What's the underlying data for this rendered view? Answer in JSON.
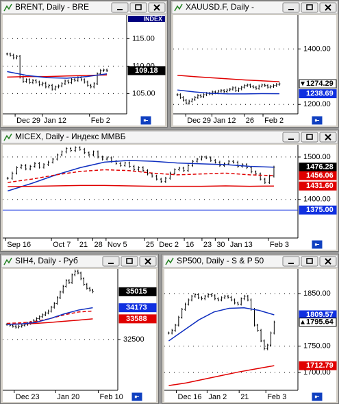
{
  "windows": [
    {
      "title": "BRENT, Daily - BRE",
      "tag": "INDEX",
      "ylim": [
        101.3,
        119.3
      ],
      "grid": true,
      "yticks": [
        {
          "value": 115,
          "label": "115.00"
        },
        {
          "value": 110,
          "label": "110.00"
        },
        {
          "value": 105,
          "label": "105.00"
        }
      ],
      "x_labels": [
        "Dec 29",
        "Jan 12",
        "Feb 2"
      ],
      "bars": [
        112.2,
        112,
        111.5,
        111.8,
        108,
        107.2,
        107.5,
        107,
        107.4,
        107.1,
        106.6,
        106.9,
        106.2,
        106.5,
        105.8,
        106.2,
        106.4,
        106.8,
        107.3,
        107,
        107.6,
        107.4,
        107.9,
        107.5,
        107.1,
        106.5,
        106.2,
        106.8,
        108.6,
        109.2,
        109.3,
        109.18
      ],
      "lines": [
        {
          "color": "#e00000",
          "values": [
            108,
            108.1,
            108.1,
            108.2,
            108.3,
            108.4
          ]
        },
        {
          "color": "#1030c0",
          "values": [
            109,
            108.3,
            107.9,
            107.8,
            108.1,
            108.6
          ]
        }
      ],
      "price_labels": [
        {
          "value": 109.18,
          "label": "109.18",
          "color": "#000000",
          "text_color": "#ffffff"
        }
      ]
    },
    {
      "title": "XAUUSD.F, Daily - ",
      "ylim": [
        1166,
        1522
      ],
      "grid": true,
      "yticks": [
        {
          "value": 1400,
          "label": "1400.00"
        },
        {
          "value": 1200,
          "label": "1200.00"
        }
      ],
      "x_labels": [
        "Dec 29",
        "Jan 12",
        "26",
        "Feb 2"
      ],
      "bars": [
        1235,
        1225,
        1215,
        1205,
        1212,
        1218,
        1225,
        1232,
        1228,
        1235,
        1240,
        1238,
        1245,
        1242,
        1248,
        1250,
        1246,
        1252,
        1255,
        1260,
        1250,
        1256,
        1262,
        1268,
        1270,
        1265,
        1262,
        1258,
        1266,
        1270,
        1268,
        1262,
        1265,
        1268,
        1272,
        1274.29
      ],
      "lines": [
        {
          "color": "#e00000",
          "values": [
            1305,
            1300,
            1296,
            1292,
            1288,
            1285,
            1282
          ]
        },
        {
          "color": "#1030c0",
          "values": [
            1252,
            1245,
            1240,
            1238,
            1238,
            1239,
            1238.69
          ]
        }
      ],
      "price_labels": [
        {
          "value": 1274.29,
          "label": "1274.29",
          "color": "#ffffff",
          "text_color": "#000000",
          "marker": "down"
        },
        {
          "value": 1238.69,
          "label": "1238.69",
          "color": "#1030e0",
          "text_color": "#ffffff"
        }
      ]
    },
    {
      "title": "MICEX, Daily - Индекс ММВБ",
      "ylim": [
        1309,
        1529
      ],
      "grid": true,
      "yticks": [
        {
          "value": 1500,
          "label": "1500.00"
        },
        {
          "value": 1400,
          "label": "1400.00"
        }
      ],
      "x_labels": [
        "Sep 16",
        "Oct 7",
        "21",
        "28",
        "Nov 5",
        "25",
        "Dec 2",
        "16",
        "23",
        "30",
        "Jan 13",
        "Feb 3"
      ],
      "bars": [
        1450,
        1462,
        1475,
        1480,
        1472,
        1478,
        1485,
        1476,
        1482,
        1488,
        1495,
        1505,
        1512,
        1520,
        1515,
        1522,
        1518,
        1510,
        1505,
        1512,
        1500,
        1495,
        1498,
        1490,
        1485,
        1480,
        1486,
        1478,
        1470,
        1475,
        1468,
        1460,
        1455,
        1448,
        1442,
        1450,
        1462,
        1470,
        1474,
        1468,
        1480,
        1490,
        1495,
        1500,
        1498,
        1492,
        1488,
        1480,
        1484,
        1490,
        1488,
        1478,
        1482,
        1475,
        1465,
        1460,
        1448,
        1440,
        1455,
        1476.28
      ],
      "lines": [
        {
          "color": "#1030c0",
          "values": [
            1420,
            1438,
            1458,
            1475,
            1488,
            1492,
            1490,
            1486,
            1484,
            1482,
            1478,
            1476
          ]
        },
        {
          "color": "#e00000",
          "dashed": true,
          "values": [
            1440,
            1448,
            1458,
            1466,
            1470,
            1468,
            1462,
            1458,
            1460,
            1462,
            1458,
            1456.06
          ]
        },
        {
          "color": "#e00000",
          "values": [
            1430,
            1431,
            1432,
            1433,
            1433,
            1432,
            1431,
            1431,
            1431,
            1432,
            1431,
            1431.6
          ]
        }
      ],
      "price_labels": [
        {
          "value": 1476.28,
          "label": "1476.28",
          "color": "#000000",
          "text_color": "#ffffff"
        },
        {
          "value": 1456.06,
          "label": "1456.06",
          "color": "#e00000",
          "text_color": "#ffffff"
        },
        {
          "value": 1431.6,
          "label": "1431.60",
          "color": "#e00000",
          "text_color": "#ffffff"
        },
        {
          "value": 1375,
          "label": "1375.00",
          "color": "#1030e0",
          "text_color": "#ffffff",
          "line": true
        }
      ]
    },
    {
      "title": "SIH4, Daily - Руб",
      "ylim": [
        29830,
        36218
      ],
      "grid": true,
      "yticks": [
        32500
      ],
      "x_labels": [
        "Dec 23",
        "Jan 20",
        "Feb 10"
      ],
      "bars": [
        33300,
        33250,
        33200,
        33150,
        33200,
        33250,
        33300,
        33350,
        33400,
        33500,
        33600,
        33700,
        33800,
        33900,
        34000,
        34200,
        34400,
        34700,
        35000,
        35300,
        35600,
        35500,
        35900,
        36100,
        36000,
        35700,
        35400,
        35200,
        35100,
        35015
      ],
      "lines": [
        {
          "color": "#e00000",
          "values": [
            33300,
            33320,
            33350,
            33400,
            33460,
            33520,
            33588
          ]
        },
        {
          "color": "#e00000",
          "dashed": true,
          "values": [
            33350,
            33380,
            33450,
            33600,
            33800,
            33950,
            34000
          ]
        },
        {
          "color": "#1030c0",
          "values": [
            33300,
            33320,
            33400,
            33600,
            33850,
            34050,
            34173
          ]
        }
      ],
      "price_labels": [
        {
          "value": 35015,
          "label": "35015",
          "color": "#000000",
          "text_color": "#ffffff"
        },
        {
          "value": 34173,
          "label": "34173",
          "color": "#1030e0",
          "text_color": "#ffffff"
        },
        {
          "value": 33588,
          "label": "33588",
          "color": "#e00000",
          "text_color": "#ffffff"
        }
      ]
    },
    {
      "title": "SP500, Daily - S & P 50",
      "ylim": [
        1666,
        1897
      ],
      "grid": true,
      "yticks": [
        {
          "value": 1850,
          "label": "1850.00"
        },
        {
          "value": 1750,
          "label": "1750.00"
        },
        {
          "value": 1700,
          "label": "1700.00"
        }
      ],
      "x_labels": [
        "Dec 16",
        "Jan 2",
        "21",
        "Feb 3"
      ],
      "bars": [
        1775,
        1780,
        1790,
        1805,
        1820,
        1830,
        1838,
        1845,
        1848,
        1842,
        1840,
        1845,
        1848,
        1846,
        1840,
        1838,
        1842,
        1845,
        1843,
        1838,
        1832,
        1830,
        1840,
        1845,
        1838,
        1820,
        1790,
        1780,
        1760,
        1745,
        1752,
        1775,
        1795.64
      ],
      "lines": [
        {
          "color": "#1030c0",
          "values": [
            1760,
            1780,
            1800,
            1815,
            1822,
            1823,
            1818,
            1809.57
          ]
        },
        {
          "color": "#e00000",
          "values": [
            1675,
            1680,
            1687,
            1694,
            1701,
            1707,
            1712.79
          ]
        }
      ],
      "price_labels": [
        {
          "value": 1809.57,
          "label": "1809.57",
          "color": "#1030e0",
          "text_color": "#ffffff"
        },
        {
          "value": 1795.64,
          "label": "1795.64",
          "color": "#ffffff",
          "text_color": "#000000",
          "marker": "up"
        },
        {
          "value": 1712.79,
          "label": "1712.79",
          "color": "#e00000",
          "text_color": "#ffffff"
        }
      ]
    }
  ]
}
